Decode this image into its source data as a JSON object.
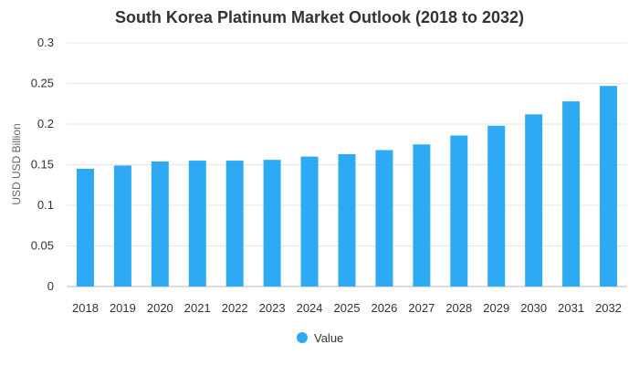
{
  "chart_data": {
    "type": "bar",
    "title": "South Korea Platinum Market Outlook (2018 to 2032)",
    "xlabel": "",
    "ylabel": "USD USD Billion",
    "ylim": [
      0,
      0.3
    ],
    "yticks": [
      "0",
      "0.05",
      "0.1",
      "0.15",
      "0.2",
      "0.25",
      "0.3"
    ],
    "categories": [
      "2018",
      "2019",
      "2020",
      "2021",
      "2022",
      "2023",
      "2024",
      "2025",
      "2026",
      "2027",
      "2028",
      "2029",
      "2030",
      "2031",
      "2032"
    ],
    "series": [
      {
        "name": "Value",
        "color": "#2eaaf5",
        "values": [
          0.145,
          0.149,
          0.154,
          0.155,
          0.155,
          0.156,
          0.16,
          0.163,
          0.168,
          0.175,
          0.186,
          0.198,
          0.212,
          0.228,
          0.247
        ]
      }
    ],
    "grid": true,
    "legend_position": "bottom-center"
  }
}
